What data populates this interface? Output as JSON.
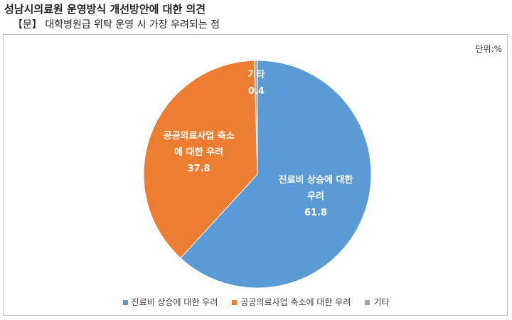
{
  "chart_data": {
    "type": "pie",
    "title": "성남시의료원 운영방식 개선방안에 대한 의견",
    "subtitle": "【문】 대학병원급 위탁 운영 시 가장 우려되는 점",
    "unit_label": "단위:%",
    "categories": [
      "진료비 상승에 대한 우려",
      "공공의료사업 축소에 대한 우려",
      "기타"
    ],
    "values": [
      61.8,
      37.8,
      0.4
    ],
    "colors": [
      "#5b9bd5",
      "#ed7d31",
      "#a5a5a5"
    ],
    "legend": "bottom"
  }
}
